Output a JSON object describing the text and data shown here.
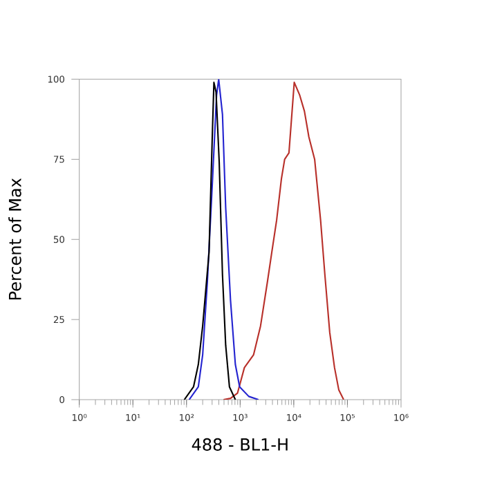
{
  "chart_data": {
    "type": "line",
    "xlabel": "488 - BL1-H",
    "ylabel": "Percent of Max",
    "log": "x",
    "xlim": [
      1,
      1000000
    ],
    "ylim": [
      0,
      100
    ],
    "xticks": [
      {
        "value": 1,
        "label": "10⁰"
      },
      {
        "value": 10,
        "label": "10¹"
      },
      {
        "value": 100,
        "label": "10²"
      },
      {
        "value": 1000,
        "label": "10³"
      },
      {
        "value": 10000,
        "label": "10⁴"
      },
      {
        "value": 100000,
        "label": "10⁵"
      },
      {
        "value": 1000000,
        "label": "10⁶"
      }
    ],
    "yticks": [
      0,
      25,
      50,
      75,
      100
    ],
    "grid": false,
    "marker": "none",
    "line_style": "solid",
    "series": [
      {
        "color": "#000000",
        "x": [
          91,
          135,
          166,
          200,
          263,
          302,
          324,
          355,
          407,
          468,
          537,
          631,
          813
        ],
        "values": [
          0,
          4,
          11,
          23,
          46,
          82,
          99,
          96,
          74,
          39,
          17,
          4,
          0
        ]
      },
      {
        "color": "#2424d0",
        "x": [
          112,
          166,
          200,
          245,
          302,
          363,
          398,
          468,
          537,
          661,
          813,
          977,
          1450,
          2190
        ],
        "values": [
          0,
          4,
          14,
          37,
          67,
          95,
          100,
          89,
          60,
          31,
          11,
          4,
          1,
          0
        ]
      },
      {
        "color": "#b8302a",
        "x": [
          490,
          661,
          891,
          1200,
          1780,
          2400,
          3240,
          3890,
          4790,
          5890,
          6760,
          8130,
          10200,
          12900,
          15800,
          19100,
          24500,
          31600,
          38000,
          46800,
          57500,
          69200,
          85100
        ],
        "values": [
          0,
          0.4,
          2,
          10,
          14,
          23,
          37,
          46,
          56,
          69,
          75,
          77,
          99,
          95,
          90,
          82,
          75,
          56,
          39,
          21,
          10,
          3,
          0
        ]
      }
    ]
  }
}
